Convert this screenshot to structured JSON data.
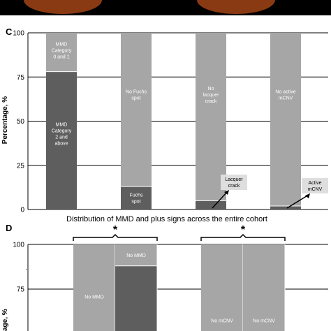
{
  "colors": {
    "dark_segment": "#5e5e5e",
    "light_segment": "#a6a6a6",
    "callout_box": "#dedede",
    "fundus_photo": "#8a3a12"
  },
  "chart_data": [
    {
      "panel": "C",
      "type": "bar",
      "stacked": true,
      "ylabel": "Percentage, %",
      "ylim": [
        0,
        100
      ],
      "yticks": [
        "0",
        "25",
        "50",
        "75",
        "100"
      ],
      "gridlines": true,
      "bars": [
        {
          "bottom_value": 78,
          "bottom_label": "MMD Category 2 and above",
          "top_label": "MMD Category 0 and 1"
        },
        {
          "bottom_value": 13,
          "bottom_label": "Fuchs spot",
          "top_label": "No Fuchs spot"
        },
        {
          "bottom_value": 5,
          "bottom_label": "",
          "top_label": "No lacquer crack",
          "callout": "Lacquer crack"
        },
        {
          "bottom_value": 2,
          "bottom_label": "",
          "top_label": "No active mCNV",
          "callout": "Active mCNV"
        }
      ]
    },
    {
      "panel": "D",
      "type": "bar",
      "stacked": true,
      "title": "Distribution of MMD and plus signs across the entire cohort",
      "ylabel": "Percentage, %",
      "ylim": [
        0,
        100
      ],
      "yticks": [
        "75",
        "100"
      ],
      "significance": [
        "*",
        "*"
      ],
      "groups": [
        {
          "bars": [
            {
              "bottom_value": 0,
              "top_label": "No MMD",
              "tone": "light"
            },
            {
              "bottom_value": 88,
              "top_label": "No MMD",
              "tone": "dark"
            }
          ]
        },
        {
          "bars": [
            {
              "bottom_value": 0,
              "top_label": "No mCNV",
              "tone": "light"
            },
            {
              "bottom_value": 0,
              "top_label": "No mCNV",
              "tone": "light"
            }
          ]
        }
      ]
    }
  ],
  "labels": {
    "panel_c": "C",
    "panel_d": "D",
    "c_ylabel": "Percentage, %",
    "d_ylabel": "age, %",
    "d_title": "Distribution of MMD and plus signs across the entire cohort",
    "d_extra_tick": ".",
    "star": "*"
  }
}
